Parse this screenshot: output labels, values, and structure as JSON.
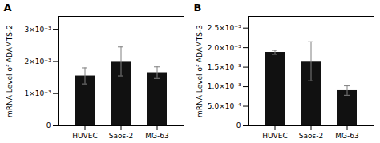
{
  "chart_data": [
    {
      "type": "bar",
      "title": "A",
      "categories": [
        "HUVEC",
        "Saos-2",
        "MG-63"
      ],
      "values": [
        0.00155,
        0.002,
        0.00165
      ],
      "errors": [
        0.00025,
        0.00045,
        0.00018
      ],
      "ylabel": "mRNA Level of ADAMTS-2",
      "color": "#111111",
      "ylim": [
        0,
        0.0034
      ],
      "yticks": [
        0,
        {
          "value": 0.001,
          "label": "1×10⁻³"
        },
        {
          "value": 0.002,
          "label": "2×10⁻³"
        },
        {
          "value": 0.003,
          "label": "3×10⁻³"
        }
      ],
      "grid": false
    },
    {
      "type": "bar",
      "title": "B",
      "categories": [
        "HUVEC",
        "Saos-2",
        "MG-63"
      ],
      "values": [
        0.00188,
        0.00165,
        0.0009
      ],
      "errors": [
        5e-05,
        0.0005,
        0.00012
      ],
      "ylabel": "mRNA Level of ADAMTS-3",
      "color": "#111111",
      "ylim": [
        0,
        0.0028
      ],
      "yticks": [
        0,
        {
          "value": 0.0005,
          "label": "5.0×10⁻⁴"
        },
        {
          "value": 0.001,
          "label": "1.0×10⁻³"
        },
        {
          "value": 0.0015,
          "label": "1.5×10⁻³"
        },
        {
          "value": 0.002,
          "label": "2.0×10⁻³"
        },
        {
          "value": 0.0025,
          "label": "2.5×10⁻³"
        }
      ],
      "grid": false
    }
  ]
}
